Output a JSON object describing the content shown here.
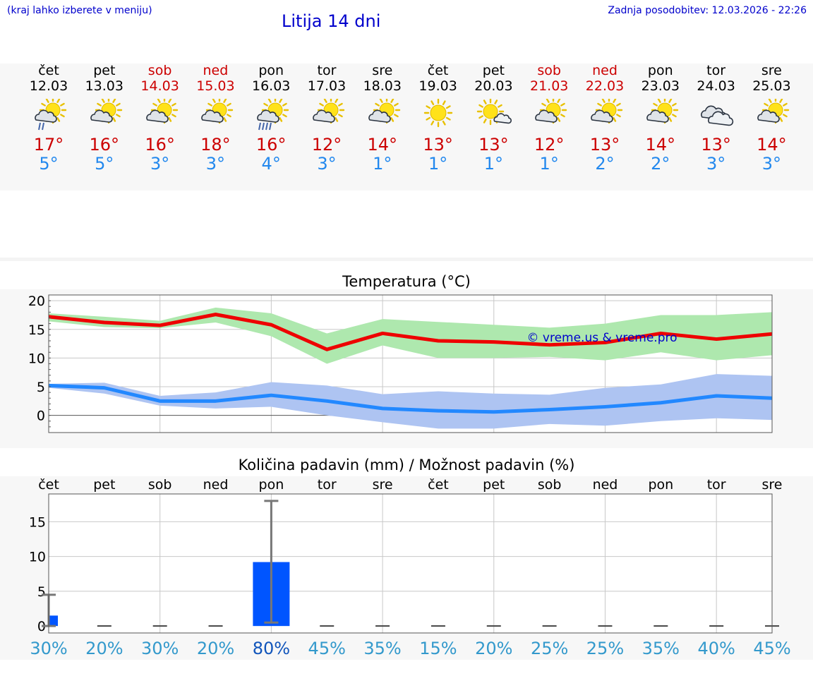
{
  "header": {
    "hint": "(kraj lahko izberete v meniju)",
    "title": "Litija 14 dni",
    "updated": "Zadnja posodobitev: 12.03.2026 - 22:26"
  },
  "colors": {
    "link_blue": "#0000cc",
    "max_red": "#cc0000",
    "min_blue": "#2288ee",
    "max_band": "#aee8ae",
    "min_band": "#aec4f2",
    "bar": "#0055ff",
    "pct_dark": "#1155bb",
    "pct_light": "#3399cc"
  },
  "days": [
    {
      "name": "čet",
      "date": "12.03",
      "weekend": false,
      "icon": "partly-cloudy-rain-icon",
      "max": "17°",
      "min": "5°"
    },
    {
      "name": "pet",
      "date": "13.03",
      "weekend": false,
      "icon": "partly-cloudy-icon",
      "max": "16°",
      "min": "5°"
    },
    {
      "name": "sob",
      "date": "14.03",
      "weekend": true,
      "icon": "partly-cloudy-icon",
      "max": "16°",
      "min": "3°"
    },
    {
      "name": "ned",
      "date": "15.03",
      "weekend": true,
      "icon": "partly-cloudy-icon",
      "max": "18°",
      "min": "3°"
    },
    {
      "name": "pon",
      "date": "16.03",
      "weekend": false,
      "icon": "partly-cloudy-heavy-rain-icon",
      "max": "16°",
      "min": "4°"
    },
    {
      "name": "tor",
      "date": "17.03",
      "weekend": false,
      "icon": "partly-cloudy-icon",
      "max": "12°",
      "min": "3°"
    },
    {
      "name": "sre",
      "date": "18.03",
      "weekend": false,
      "icon": "partly-cloudy-icon",
      "max": "14°",
      "min": "1°"
    },
    {
      "name": "čet",
      "date": "19.03",
      "weekend": false,
      "icon": "sunny-icon",
      "max": "13°",
      "min": "1°"
    },
    {
      "name": "pet",
      "date": "20.03",
      "weekend": false,
      "icon": "mostly-sunny-icon",
      "max": "13°",
      "min": "1°"
    },
    {
      "name": "sob",
      "date": "21.03",
      "weekend": true,
      "icon": "partly-cloudy-icon",
      "max": "12°",
      "min": "1°"
    },
    {
      "name": "ned",
      "date": "22.03",
      "weekend": true,
      "icon": "partly-cloudy-icon",
      "max": "13°",
      "min": "2°"
    },
    {
      "name": "pon",
      "date": "23.03",
      "weekend": false,
      "icon": "partly-cloudy-icon",
      "max": "14°",
      "min": "2°"
    },
    {
      "name": "tor",
      "date": "24.03",
      "weekend": false,
      "icon": "cloudy-icon",
      "max": "13°",
      "min": "3°"
    },
    {
      "name": "sre",
      "date": "25.03",
      "weekend": false,
      "icon": "partly-cloudy-icon",
      "max": "14°",
      "min": "3°"
    }
  ],
  "chart_data": [
    {
      "type": "line",
      "title": "Temperatura (°C)",
      "watermark": "© vreme.us & vreme.pro",
      "x_ticks": [
        0,
        1,
        2,
        3,
        4,
        5,
        6,
        7,
        8,
        9,
        10,
        11,
        12,
        13
      ],
      "ylim": [
        -3,
        21
      ],
      "yticks": [
        0,
        5,
        10,
        15,
        20
      ],
      "grid": true,
      "series": [
        {
          "name": "max",
          "color": "#ee0000",
          "band_color": "#aee8ae",
          "x": [
            0,
            1,
            2,
            3,
            4,
            5,
            6,
            7,
            8,
            9,
            10,
            11,
            12,
            13
          ],
          "values": [
            17.2,
            16.2,
            15.7,
            17.6,
            15.8,
            11.5,
            14.3,
            13.0,
            12.8,
            12.3,
            12.7,
            14.3,
            13.3,
            14.2
          ],
          "band_low": [
            16.4,
            15.4,
            15.2,
            16.2,
            13.8,
            9.0,
            12.2,
            10.0,
            10.0,
            10.2,
            9.6,
            11.0,
            9.6,
            10.5
          ],
          "band_high": [
            17.8,
            17.2,
            16.5,
            18.8,
            17.8,
            14.3,
            16.8,
            16.3,
            15.8,
            15.3,
            16.0,
            17.5,
            17.5,
            18.0
          ]
        },
        {
          "name": "min",
          "color": "#2288ff",
          "band_color": "#aec4f2",
          "x": [
            0,
            1,
            2,
            3,
            4,
            5,
            6,
            7,
            8,
            9,
            10,
            11,
            12,
            13
          ],
          "values": [
            5.2,
            4.8,
            2.5,
            2.5,
            3.5,
            2.5,
            1.2,
            0.8,
            0.6,
            1.0,
            1.5,
            2.2,
            3.4,
            3.0
          ],
          "band_low": [
            4.8,
            3.8,
            1.7,
            1.2,
            1.5,
            0.0,
            -1.2,
            -2.3,
            -2.3,
            -1.5,
            -1.8,
            -1.0,
            -0.5,
            -0.8
          ],
          "band_high": [
            5.5,
            5.7,
            3.4,
            4.0,
            5.8,
            5.2,
            3.7,
            4.2,
            3.8,
            3.6,
            4.8,
            5.4,
            7.2,
            6.9
          ]
        }
      ]
    },
    {
      "type": "bar",
      "title": "Količina padavin (mm) / Možnost padavin (%)",
      "categories": [
        "čet",
        "pet",
        "sob",
        "ned",
        "pon",
        "tor",
        "sre",
        "čet",
        "pet",
        "sob",
        "ned",
        "pon",
        "tor",
        "sre"
      ],
      "ylim": [
        -1,
        19
      ],
      "yticks": [
        0,
        5,
        10,
        15
      ],
      "grid": true,
      "values": [
        1.5,
        0,
        0,
        0,
        9.2,
        0,
        0,
        0,
        0,
        0,
        0,
        0,
        0,
        0
      ],
      "error_low": [
        0,
        0,
        0,
        0,
        0.5,
        0,
        0,
        0,
        0,
        0,
        0,
        0,
        0,
        0
      ],
      "error_high": [
        4.5,
        0,
        0,
        0,
        18.0,
        0,
        0,
        0,
        0,
        0,
        0,
        0,
        0,
        0
      ],
      "probabilities": [
        "30%",
        "20%",
        "30%",
        "20%",
        "80%",
        "45%",
        "35%",
        "15%",
        "20%",
        "25%",
        "25%",
        "35%",
        "40%",
        "45%"
      ],
      "probability_highlight_index": 4
    }
  ]
}
